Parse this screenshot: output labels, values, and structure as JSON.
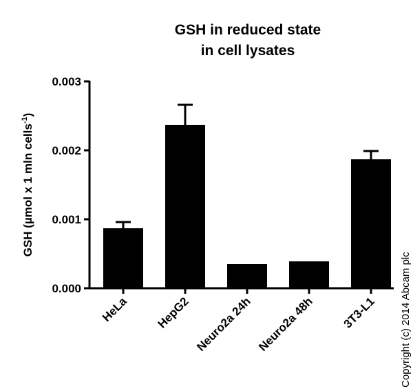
{
  "chart_data": {
    "type": "bar",
    "title": [
      "GSH in reduced state",
      "in cell lysates"
    ],
    "y_label": {
      "text": "GSH (µmol x 1 mln cells",
      "superscript": "-1",
      "suffix": ")"
    },
    "categories": [
      "HeLa",
      "HepG2",
      "Neuro2a 24h",
      "Neuro2a 48h",
      "3T3-L1"
    ],
    "values": [
      0.00087,
      0.00237,
      0.00035,
      0.00039,
      0.00187
    ],
    "errors": [
      9e-05,
      0.00029,
      null,
      null,
      0.00012
    ],
    "color": "#000000",
    "ylim": [
      0,
      0.003
    ],
    "yticks": [
      {
        "value": 0,
        "label": "0.000"
      },
      0.001,
      0.002,
      0.003
    ],
    "copyright": "Copyright (c) 2014 Abcam plc"
  }
}
